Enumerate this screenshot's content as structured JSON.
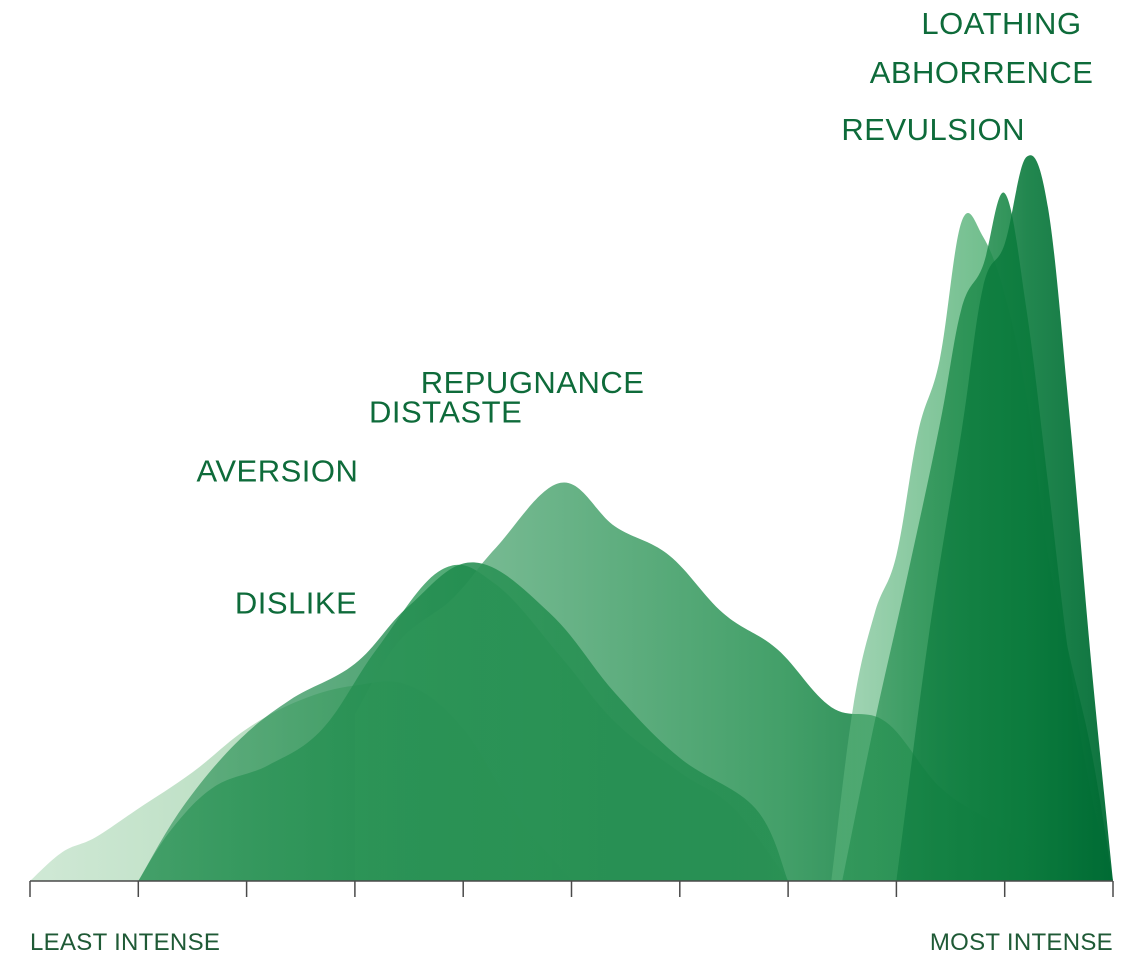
{
  "chart_data": {
    "type": "area",
    "title": "",
    "xlabel": "",
    "ylabel": "",
    "x_axis": {
      "left_label": "LEAST INTENSE",
      "right_label": "MOST INTENSE",
      "tick_count": 11
    },
    "xlim": [
      0,
      10
    ],
    "ylim": [
      0,
      100
    ],
    "grid": false,
    "series": [
      {
        "name": "DISLIKE",
        "color": "#a9d6b3",
        "x": [
          0,
          0.3,
          0.6,
          1.0,
          1.5,
          2.0,
          2.5,
          3.0,
          3.5,
          4.0,
          4.5,
          5.0
        ],
        "y": [
          0,
          4,
          6,
          10,
          15,
          21,
          25,
          27,
          27,
          21,
          9,
          0
        ]
      },
      {
        "name": "AVERSION",
        "color": "#2f9a5a",
        "x": [
          1.0,
          1.3,
          1.7,
          2.2,
          2.7,
          3.2,
          3.8,
          4.3,
          4.9,
          5.4,
          6.0,
          6.5,
          7.0
        ],
        "y": [
          0,
          7,
          13,
          16,
          21,
          32,
          43,
          41,
          31,
          22,
          15,
          10,
          0
        ]
      },
      {
        "name": "DISTASTE",
        "color": "#1e8a4c",
        "x": [
          1.0,
          1.4,
          1.9,
          2.4,
          3.0,
          3.5,
          4.1,
          4.8,
          5.4,
          6.0,
          6.7,
          7.0
        ],
        "y": [
          0,
          10,
          19,
          25,
          30,
          38,
          44,
          37,
          26,
          17,
          10,
          0
        ]
      },
      {
        "name": "REPUGNANCE",
        "color": "#2e9558",
        "x": [
          3.0,
          3.4,
          3.9,
          4.3,
          4.9,
          5.4,
          5.9,
          6.4,
          6.9,
          7.4,
          7.9,
          8.4,
          8.9,
          9.3,
          9.6
        ],
        "y": [
          23,
          33,
          39,
          46,
          55,
          49,
          45,
          37,
          32,
          24,
          22,
          13,
          8,
          4,
          0
        ]
      },
      {
        "name": "REVULSION",
        "color": "#5db57d",
        "x": [
          7.4,
          7.6,
          7.8,
          8.0,
          8.2,
          8.4,
          8.6,
          8.8,
          9.0,
          9.2,
          9.4,
          9.6,
          9.8,
          10.0
        ],
        "y": [
          0,
          24,
          37,
          45,
          62,
          72,
          91,
          89,
          81,
          67,
          45,
          31,
          18,
          0
        ]
      },
      {
        "name": "ABHORRENCE",
        "color": "#1d8a4a",
        "x": [
          7.5,
          7.8,
          8.1,
          8.4,
          8.6,
          8.8,
          9.0,
          9.2,
          9.4,
          9.6,
          9.8,
          10.0
        ],
        "y": [
          0,
          22,
          42,
          63,
          79,
          85,
          95,
          79,
          55,
          30,
          12,
          0
        ]
      },
      {
        "name": "LOATHING",
        "color": "#0a7a3c",
        "x": [
          8.0,
          8.3,
          8.6,
          8.8,
          9.0,
          9.2,
          9.4,
          9.6,
          9.8,
          10.0
        ],
        "y": [
          0,
          34,
          62,
          82,
          88,
          100,
          93,
          64,
          30,
          0
        ]
      }
    ]
  }
}
